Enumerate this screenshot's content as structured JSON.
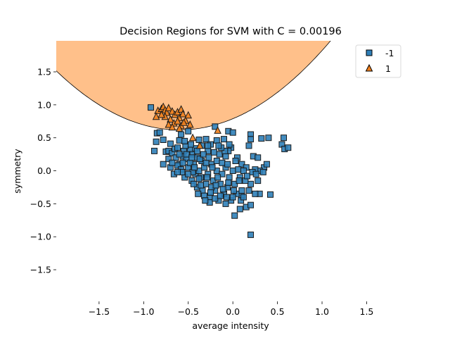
{
  "chart_data": {
    "type": "scatter",
    "title": "Decision Regions for SVM with C = 0.00196",
    "xlabel": "average intensity",
    "ylabel": "symmetry",
    "xlim": [
      -1.98,
      1.93
    ],
    "ylim": [
      -1.98,
      1.97
    ],
    "x_ticks": [
      -1.5,
      -1.0,
      -0.5,
      0.0,
      0.5,
      1.0,
      1.5
    ],
    "x_tick_labels": [
      "−1.5",
      "−1.0",
      "−0.5",
      "0.0",
      "0.5",
      "1.0",
      "1.5"
    ],
    "y_ticks": [
      -1.5,
      -1.0,
      -0.5,
      0.0,
      0.5,
      1.0,
      1.5
    ],
    "y_tick_labels": [
      "−1.5",
      "−1.0",
      "−0.5",
      "0.0",
      "0.5",
      "1.0",
      "1.5"
    ],
    "grid": false,
    "legend_position": "top-right",
    "decision_boundary": {
      "description": "parabolic boundary y = a*(x - h)^2 + k; region above is class 1",
      "vertex_x": -0.6,
      "vertex_y": 0.62,
      "curvature": 0.47,
      "region_class": "1",
      "region_color": "#ffc08a"
    },
    "series": [
      {
        "name": "-1",
        "label": "-1",
        "marker": "square",
        "color": "#2f7fb8",
        "points": [
          [
            -0.92,
            0.96
          ],
          [
            -0.85,
            0.57
          ],
          [
            -0.82,
            0.58
          ],
          [
            -0.86,
            0.44
          ],
          [
            -0.78,
            0.47
          ],
          [
            -0.75,
            0.29
          ],
          [
            -0.72,
            0.3
          ],
          [
            -0.7,
            0.41
          ],
          [
            -0.68,
            0.27
          ],
          [
            -0.65,
            0.33
          ],
          [
            -0.62,
            0.35
          ],
          [
            -0.6,
            0.46
          ],
          [
            -0.58,
            0.55
          ],
          [
            -0.5,
            0.6
          ],
          [
            -0.56,
            0.22
          ],
          [
            -0.64,
            0.2
          ],
          [
            -0.6,
            0.1
          ],
          [
            -0.55,
            0.3
          ],
          [
            -0.52,
            0.18
          ],
          [
            -0.48,
            0.32
          ],
          [
            -0.45,
            0.25
          ],
          [
            -0.42,
            0.34
          ],
          [
            -0.4,
            0.2
          ],
          [
            -0.38,
            0.47
          ],
          [
            -0.35,
            0.15
          ],
          [
            -0.3,
            0.48
          ],
          [
            -0.28,
            0.3
          ],
          [
            -0.25,
            0.4
          ],
          [
            -0.2,
            0.67
          ],
          [
            -0.18,
            0.46
          ],
          [
            -0.1,
            0.48
          ],
          [
            -0.05,
            0.6
          ],
          [
            0.0,
            0.58
          ],
          [
            -0.02,
            0.35
          ],
          [
            -0.05,
            0.3
          ],
          [
            -0.08,
            0.22
          ],
          [
            0.05,
            0.2
          ],
          [
            0.1,
            0.1
          ],
          [
            0.15,
            0.05
          ],
          [
            0.18,
            0.38
          ],
          [
            0.2,
            0.55
          ],
          [
            0.2,
            0.48
          ],
          [
            0.23,
            0.22
          ],
          [
            0.28,
            0.2
          ],
          [
            0.32,
            0.49
          ],
          [
            0.4,
            0.5
          ],
          [
            0.35,
            0.05
          ],
          [
            0.38,
            0.1
          ],
          [
            0.3,
            0.0
          ],
          [
            0.25,
            0.02
          ],
          [
            0.57,
            0.5
          ],
          [
            0.55,
            0.4
          ],
          [
            0.58,
            0.33
          ],
          [
            0.62,
            0.35
          ],
          [
            0.2,
            -0.2
          ],
          [
            0.28,
            -0.15
          ],
          [
            0.3,
            -0.35
          ],
          [
            0.25,
            -0.35
          ],
          [
            0.18,
            -0.3
          ],
          [
            0.1,
            -0.38
          ],
          [
            0.15,
            -0.55
          ],
          [
            0.08,
            -0.58
          ],
          [
            0.2,
            -0.52
          ],
          [
            0.42,
            -0.36
          ],
          [
            0.02,
            -0.68
          ],
          [
            0.2,
            -0.97
          ],
          [
            -0.88,
            0.3
          ],
          [
            -0.78,
            0.1
          ],
          [
            -0.7,
            0.05
          ],
          [
            -0.66,
            -0.05
          ],
          [
            -0.62,
            0.08
          ],
          [
            -0.58,
            0.02
          ],
          [
            -0.54,
            -0.1
          ],
          [
            -0.5,
            0.05
          ],
          [
            -0.46,
            -0.15
          ],
          [
            -0.44,
            0.1
          ],
          [
            -0.42,
            -0.05
          ],
          [
            -0.4,
            -0.25
          ],
          [
            -0.38,
            0.0
          ],
          [
            -0.36,
            -0.1
          ],
          [
            -0.34,
            -0.3
          ],
          [
            -0.32,
            0.05
          ],
          [
            -0.3,
            -0.2
          ],
          [
            -0.28,
            -0.05
          ],
          [
            -0.26,
            -0.4
          ],
          [
            -0.24,
            0.1
          ],
          [
            -0.22,
            -0.15
          ],
          [
            -0.2,
            -0.3
          ],
          [
            -0.18,
            0.0
          ],
          [
            -0.16,
            -0.45
          ],
          [
            -0.14,
            -0.2
          ],
          [
            -0.12,
            -0.05
          ],
          [
            -0.1,
            -0.35
          ],
          [
            -0.08,
            0.05
          ],
          [
            -0.06,
            -0.25
          ],
          [
            -0.04,
            -0.1
          ],
          [
            -0.02,
            -0.45
          ],
          [
            0.0,
            0.0
          ],
          [
            0.02,
            -0.2
          ],
          [
            0.04,
            -0.35
          ],
          [
            0.06,
            0.02
          ],
          [
            0.08,
            -0.1
          ],
          [
            0.1,
            -0.3
          ],
          [
            0.12,
            0.0
          ],
          [
            0.14,
            -0.15
          ],
          [
            -0.52,
            0.25
          ],
          [
            -0.48,
            0.12
          ],
          [
            -0.45,
            -0.02
          ],
          [
            -0.4,
            0.3
          ],
          [
            -0.37,
            0.18
          ],
          [
            -0.33,
            0.25
          ],
          [
            -0.3,
            0.12
          ],
          [
            -0.27,
            0.2
          ],
          [
            -0.24,
            -0.25
          ],
          [
            -0.21,
            0.28
          ],
          [
            -0.18,
            0.15
          ],
          [
            -0.15,
            0.25
          ],
          [
            -0.12,
            0.12
          ],
          [
            -0.09,
            0.3
          ],
          [
            -0.06,
            0.1
          ],
          [
            -0.56,
            0.12
          ],
          [
            -0.5,
            -0.05
          ],
          [
            -0.44,
            -0.2
          ],
          [
            -0.38,
            -0.12
          ],
          [
            -0.32,
            -0.38
          ],
          [
            -0.26,
            -0.48
          ],
          [
            -0.2,
            -0.42
          ],
          [
            -0.14,
            -0.38
          ],
          [
            -0.08,
            -0.5
          ],
          [
            0.0,
            -0.4
          ],
          [
            -0.6,
            0.25
          ],
          [
            -0.57,
            -0.02
          ],
          [
            -0.53,
            0.38
          ],
          [
            -0.47,
            0.4
          ],
          [
            -0.43,
            0.05
          ],
          [
            -0.35,
            0.38
          ],
          [
            -0.29,
            -0.1
          ],
          [
            -0.23,
            0.05
          ],
          [
            -0.17,
            -0.1
          ],
          [
            -0.11,
            -0.28
          ],
          [
            -0.05,
            -0.18
          ],
          [
            0.03,
            0.15
          ],
          [
            0.09,
            -0.45
          ],
          [
            0.16,
            -0.08
          ],
          [
            0.22,
            -0.02
          ],
          [
            -0.62,
            -0.02
          ],
          [
            -0.46,
            0.2
          ],
          [
            -0.39,
            -0.35
          ],
          [
            -0.31,
            -0.45
          ],
          [
            -0.25,
            -0.33
          ],
          [
            -0.19,
            -0.22
          ],
          [
            -0.13,
            0.35
          ],
          [
            -0.07,
            -0.4
          ],
          [
            0.01,
            -0.3
          ],
          [
            0.07,
            -0.15
          ],
          [
            -0.72,
            0.18
          ],
          [
            -0.68,
            0.12
          ],
          [
            -0.54,
            0.45
          ],
          [
            -0.36,
            -0.22
          ],
          [
            -0.28,
            0.38
          ],
          [
            -0.16,
            0.38
          ],
          [
            -0.04,
            0.4
          ],
          [
            0.12,
            -0.4
          ],
          [
            0.26,
            -0.05
          ],
          [
            0.34,
            -0.02
          ]
        ]
      },
      {
        "name": "1",
        "label": "1",
        "marker": "triangle",
        "color": "#f07f1c",
        "points": [
          [
            -0.84,
            0.91
          ],
          [
            -0.8,
            0.94
          ],
          [
            -0.78,
            0.97
          ],
          [
            -0.76,
            0.92
          ],
          [
            -0.74,
            0.88
          ],
          [
            -0.72,
            0.95
          ],
          [
            -0.68,
            0.9
          ],
          [
            -0.65,
            0.85
          ],
          [
            -0.62,
            0.89
          ],
          [
            -0.6,
            0.8
          ],
          [
            -0.58,
            0.93
          ],
          [
            -0.56,
            0.86
          ],
          [
            -0.53,
            0.76
          ],
          [
            -0.5,
            0.84
          ],
          [
            -0.48,
            0.7
          ],
          [
            -0.7,
            0.78
          ],
          [
            -0.66,
            0.72
          ],
          [
            -0.62,
            0.75
          ],
          [
            -0.58,
            0.68
          ],
          [
            -0.55,
            0.73
          ],
          [
            -0.76,
            0.82
          ],
          [
            -0.8,
            0.85
          ],
          [
            -0.86,
            0.82
          ],
          [
            -0.72,
            0.7
          ],
          [
            -0.68,
            0.66
          ],
          [
            -0.45,
            0.5
          ],
          [
            -0.37,
            0.38
          ],
          [
            -0.17,
            0.61
          ],
          [
            -0.6,
            0.64
          ]
        ]
      }
    ]
  }
}
